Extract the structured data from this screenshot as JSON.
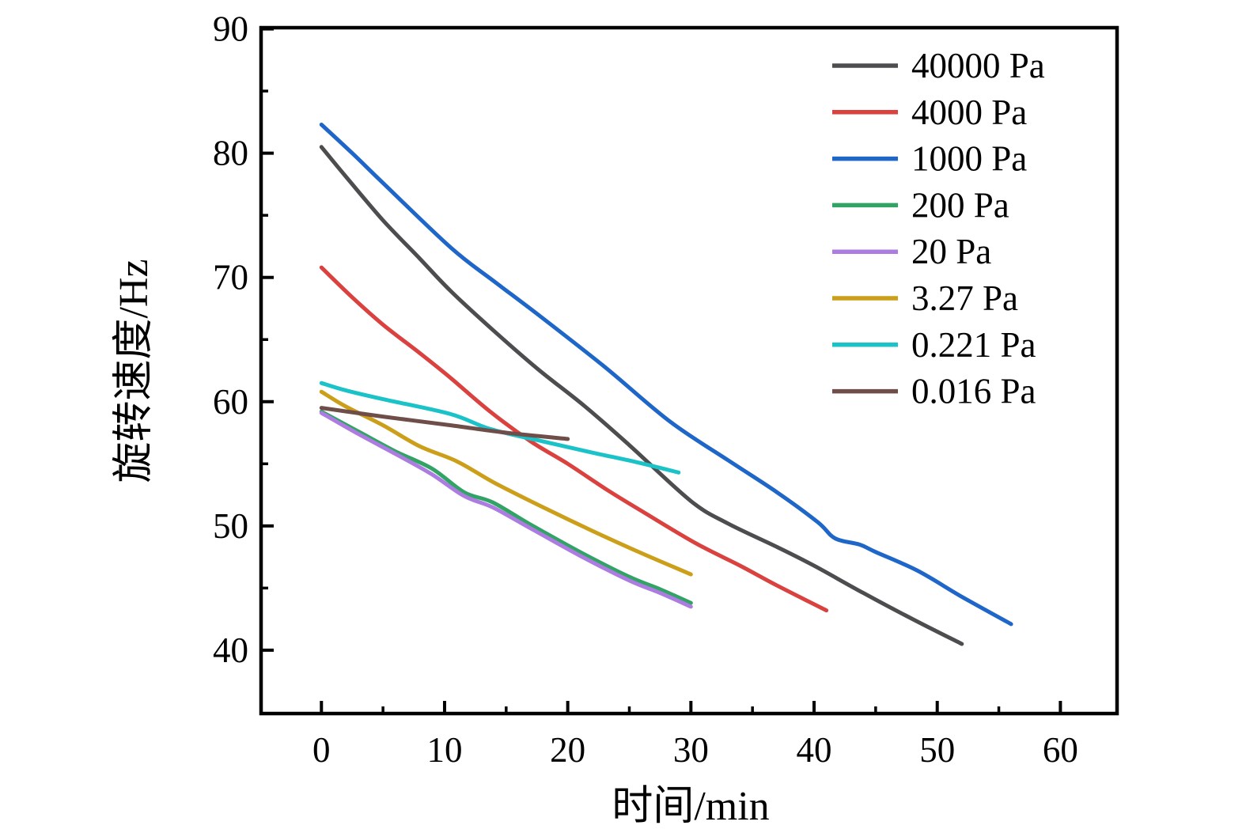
{
  "chart_data": {
    "type": "line",
    "title": "",
    "xlabel": "时间/min",
    "ylabel": "旋转速度/Hz",
    "x_unit": "min",
    "y_unit": "Hz",
    "xlim": [
      -4.9,
      64.6
    ],
    "ylim": [
      34.9,
      90.1
    ],
    "x_major_ticks": [
      0,
      10,
      20,
      30,
      40,
      50,
      60
    ],
    "x_minor_ticks": [
      5,
      15,
      25,
      35,
      45,
      55
    ],
    "y_major_ticks": [
      40,
      50,
      60,
      70,
      80,
      90
    ],
    "y_minor_ticks": [
      45,
      55,
      65,
      75,
      85
    ],
    "grid": false,
    "legend_position": "upper right",
    "frame_color": "#000000",
    "background_color": "#ffffff",
    "series": [
      {
        "name": "40000 Pa",
        "color": "#4d4d4f",
        "points": [
          [
            0,
            80.5
          ],
          [
            2,
            78.1
          ],
          [
            5,
            74.6
          ],
          [
            8,
            71.5
          ],
          [
            10.5,
            68.9
          ],
          [
            14,
            65.7
          ],
          [
            17.6,
            62.6
          ],
          [
            21.3,
            59.7
          ],
          [
            25,
            56.5
          ],
          [
            30,
            52.0
          ],
          [
            33,
            50.2
          ],
          [
            37,
            48.3
          ],
          [
            40,
            46.8
          ],
          [
            44,
            44.6
          ],
          [
            48,
            42.5
          ],
          [
            52,
            40.5
          ]
        ]
      },
      {
        "name": "4000 Pa",
        "color": "#d9423f",
        "points": [
          [
            0,
            70.8
          ],
          [
            2.5,
            68.4
          ],
          [
            5,
            66.2
          ],
          [
            8,
            63.9
          ],
          [
            10.5,
            61.9
          ],
          [
            13.7,
            59.2
          ],
          [
            17,
            56.8
          ],
          [
            20,
            55.0
          ],
          [
            23.2,
            52.9
          ],
          [
            26,
            51.2
          ],
          [
            30.4,
            48.6
          ],
          [
            34,
            46.8
          ],
          [
            37,
            45.2
          ],
          [
            41,
            43.2
          ]
        ]
      },
      {
        "name": "1000 Pa",
        "color": "#1f66c9",
        "points": [
          [
            0,
            82.3
          ],
          [
            2.5,
            80.0
          ],
          [
            5,
            77.6
          ],
          [
            10.5,
            72.4
          ],
          [
            14,
            69.7
          ],
          [
            17.6,
            67.0
          ],
          [
            23,
            62.8
          ],
          [
            28.3,
            58.4
          ],
          [
            33,
            55.3
          ],
          [
            37,
            52.7
          ],
          [
            40.3,
            50.3
          ],
          [
            41.7,
            49.0
          ],
          [
            43.7,
            48.5
          ],
          [
            45,
            47.9
          ],
          [
            48.4,
            46.4
          ],
          [
            52,
            44.3
          ],
          [
            56,
            42.1
          ]
        ]
      },
      {
        "name": "200 Pa",
        "color": "#31a365",
        "points": [
          [
            0,
            59.2
          ],
          [
            3,
            57.6
          ],
          [
            6,
            56.0
          ],
          [
            9,
            54.6
          ],
          [
            11.6,
            52.7
          ],
          [
            13.9,
            51.9
          ],
          [
            17,
            50.1
          ],
          [
            21,
            47.9
          ],
          [
            25,
            45.9
          ],
          [
            27.5,
            44.9
          ],
          [
            30,
            43.8
          ]
        ]
      },
      {
        "name": "20 Pa",
        "color": "#ad7ce0",
        "points": [
          [
            0,
            59.1
          ],
          [
            3,
            57.4
          ],
          [
            6,
            55.8
          ],
          [
            8.9,
            54.2
          ],
          [
            11.6,
            52.4
          ],
          [
            13.9,
            51.5
          ],
          [
            17,
            49.8
          ],
          [
            21,
            47.6
          ],
          [
            25,
            45.6
          ],
          [
            27.5,
            44.6
          ],
          [
            30,
            43.5
          ]
        ]
      },
      {
        "name": "3.27 Pa",
        "color": "#cc9f1a",
        "points": [
          [
            0,
            60.8
          ],
          [
            2,
            59.6
          ],
          [
            5,
            58.1
          ],
          [
            8,
            56.4
          ],
          [
            11,
            55.2
          ],
          [
            14,
            53.5
          ],
          [
            18,
            51.5
          ],
          [
            22,
            49.6
          ],
          [
            26,
            47.8
          ],
          [
            30,
            46.1
          ]
        ]
      },
      {
        "name": "0.221 Pa",
        "color": "#1bc3c9",
        "points": [
          [
            0,
            61.5
          ],
          [
            2,
            60.9
          ],
          [
            5,
            60.2
          ],
          [
            10.5,
            59.0
          ],
          [
            13.7,
            57.8
          ],
          [
            18,
            56.8
          ],
          [
            22,
            55.9
          ],
          [
            25.3,
            55.2
          ],
          [
            29,
            54.3
          ]
        ]
      },
      {
        "name": "0.016 Pa",
        "color": "#6f4d48",
        "points": [
          [
            0,
            59.5
          ],
          [
            5,
            58.8
          ],
          [
            10.5,
            58.1
          ],
          [
            15,
            57.5
          ],
          [
            20,
            57.0
          ]
        ]
      }
    ],
    "legend_labels": [
      "40000 Pa",
      "4000 Pa",
      "1000 Pa",
      "200 Pa",
      "20 Pa",
      "3.27 Pa",
      "0.221 Pa",
      "0.016 Pa"
    ]
  }
}
